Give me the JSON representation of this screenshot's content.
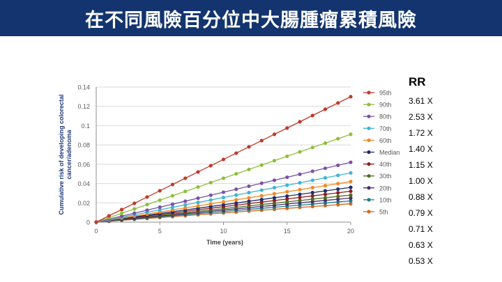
{
  "header": {
    "title": "在不同風險百分位中大腸腫瘤累積風險"
  },
  "rr_panel": {
    "header": "RR",
    "values": [
      "3.61 X",
      "2.53 X",
      "1.72 X",
      "1.40 X",
      "1.15 X",
      "1.00 X",
      "0.88 X",
      "0.79 X",
      "0.71 X",
      "0.63 X",
      "0.53 X"
    ]
  },
  "chart_data": {
    "type": "line",
    "xlabel": "Time (years)",
    "ylabel": "Cumulative risk of developing colorectal cancer/adenoma",
    "xlim": [
      0,
      20
    ],
    "ylim": [
      0,
      0.14
    ],
    "x_ticks": [
      0,
      5,
      10,
      15,
      20
    ],
    "y_ticks": [
      0,
      0.02,
      0.04,
      0.06,
      0.08,
      0.1,
      0.12,
      0.14
    ],
    "x_tick_labels": [
      "0",
      "5",
      "10",
      "15",
      "20"
    ],
    "y_tick_labels": [
      "0",
      "0.02",
      "0.04",
      "0.06",
      "0.08",
      "0.1",
      "0.12",
      "0.14"
    ],
    "grid": "horizontal",
    "legend_position": "right",
    "x": [
      0,
      1,
      2,
      3,
      4,
      5,
      6,
      7,
      8,
      9,
      10,
      11,
      12,
      13,
      14,
      15,
      16,
      17,
      18,
      19,
      20
    ],
    "series": [
      {
        "name": "95th",
        "color": "#c0392b",
        "values": [
          0,
          0.0065,
          0.013,
          0.0195,
          0.026,
          0.0325,
          0.039,
          0.0455,
          0.052,
          0.0585,
          0.065,
          0.0715,
          0.078,
          0.0845,
          0.091,
          0.0975,
          0.104,
          0.1105,
          0.117,
          0.1235,
          0.13
        ]
      },
      {
        "name": "90th",
        "color": "#8fbf3a",
        "values": [
          0,
          0.00455,
          0.0091,
          0.01365,
          0.0182,
          0.02275,
          0.0273,
          0.03185,
          0.0364,
          0.04095,
          0.0455,
          0.05005,
          0.0546,
          0.05915,
          0.0637,
          0.06825,
          0.0728,
          0.07735,
          0.0819,
          0.08645,
          0.091
        ]
      },
      {
        "name": "80th",
        "color": "#7b52a6",
        "values": [
          0,
          0.0031,
          0.0062,
          0.0093,
          0.0124,
          0.0155,
          0.0186,
          0.0217,
          0.0248,
          0.0279,
          0.031,
          0.0341,
          0.0372,
          0.0403,
          0.0434,
          0.0465,
          0.0496,
          0.0527,
          0.0558,
          0.0589,
          0.062
        ]
      },
      {
        "name": "70th",
        "color": "#3fb4d4",
        "values": [
          0,
          0.00255,
          0.0051,
          0.00765,
          0.0102,
          0.01275,
          0.0153,
          0.01785,
          0.0204,
          0.02295,
          0.0255,
          0.02805,
          0.0306,
          0.03315,
          0.0357,
          0.03825,
          0.0408,
          0.04335,
          0.0459,
          0.04845,
          0.051
        ]
      },
      {
        "name": "60th",
        "color": "#f08a24",
        "values": [
          0,
          0.0021,
          0.0042,
          0.0063,
          0.0084,
          0.0105,
          0.0126,
          0.0147,
          0.0168,
          0.0189,
          0.021,
          0.0231,
          0.0252,
          0.0273,
          0.0294,
          0.0315,
          0.0336,
          0.0357,
          0.0378,
          0.0399,
          0.042
        ]
      },
      {
        "name": "Median",
        "color": "#1f2d6b",
        "values": [
          0,
          0.0018,
          0.0036,
          0.0054,
          0.0072,
          0.009,
          0.0108,
          0.0126,
          0.0144,
          0.0162,
          0.018,
          0.0198,
          0.0216,
          0.0234,
          0.0252,
          0.027,
          0.0288,
          0.0306,
          0.0324,
          0.0342,
          0.036
        ]
      },
      {
        "name": "40th",
        "color": "#8e1e1e",
        "values": [
          0,
          0.0016,
          0.0032,
          0.0048,
          0.0064,
          0.008,
          0.0096,
          0.0112,
          0.0128,
          0.0144,
          0.016,
          0.0176,
          0.0192,
          0.0208,
          0.0224,
          0.024,
          0.0256,
          0.0272,
          0.0288,
          0.0304,
          0.032
        ]
      },
      {
        "name": "30th",
        "color": "#4e6b1f",
        "values": [
          0,
          0.0014,
          0.0028,
          0.0042,
          0.0056,
          0.007,
          0.0084,
          0.0098,
          0.0112,
          0.0126,
          0.014,
          0.0154,
          0.0168,
          0.0182,
          0.0196,
          0.021,
          0.0224,
          0.0238,
          0.0252,
          0.0266,
          0.028
        ]
      },
      {
        "name": "20th",
        "color": "#4a2a6e",
        "values": [
          0,
          0.00125,
          0.0025,
          0.00375,
          0.005,
          0.00625,
          0.0075,
          0.00875,
          0.01,
          0.01125,
          0.0125,
          0.01375,
          0.015,
          0.01625,
          0.0175,
          0.01875,
          0.02,
          0.02125,
          0.0225,
          0.02375,
          0.025
        ]
      },
      {
        "name": "10th",
        "color": "#1f7a8c",
        "values": [
          0,
          0.0011,
          0.0022,
          0.0033,
          0.0044,
          0.0055,
          0.0066,
          0.0077,
          0.0088,
          0.0099,
          0.011,
          0.0121,
          0.0132,
          0.0143,
          0.0154,
          0.0165,
          0.0176,
          0.0187,
          0.0198,
          0.0209,
          0.022
        ]
      },
      {
        "name": "5th",
        "color": "#d2691e",
        "values": [
          0,
          0.00095,
          0.0019,
          0.00285,
          0.0038,
          0.00475,
          0.0057,
          0.00665,
          0.0076,
          0.00855,
          0.0095,
          0.01045,
          0.0114,
          0.01235,
          0.0133,
          0.01425,
          0.0152,
          0.01615,
          0.0171,
          0.01805,
          0.019
        ]
      }
    ]
  }
}
